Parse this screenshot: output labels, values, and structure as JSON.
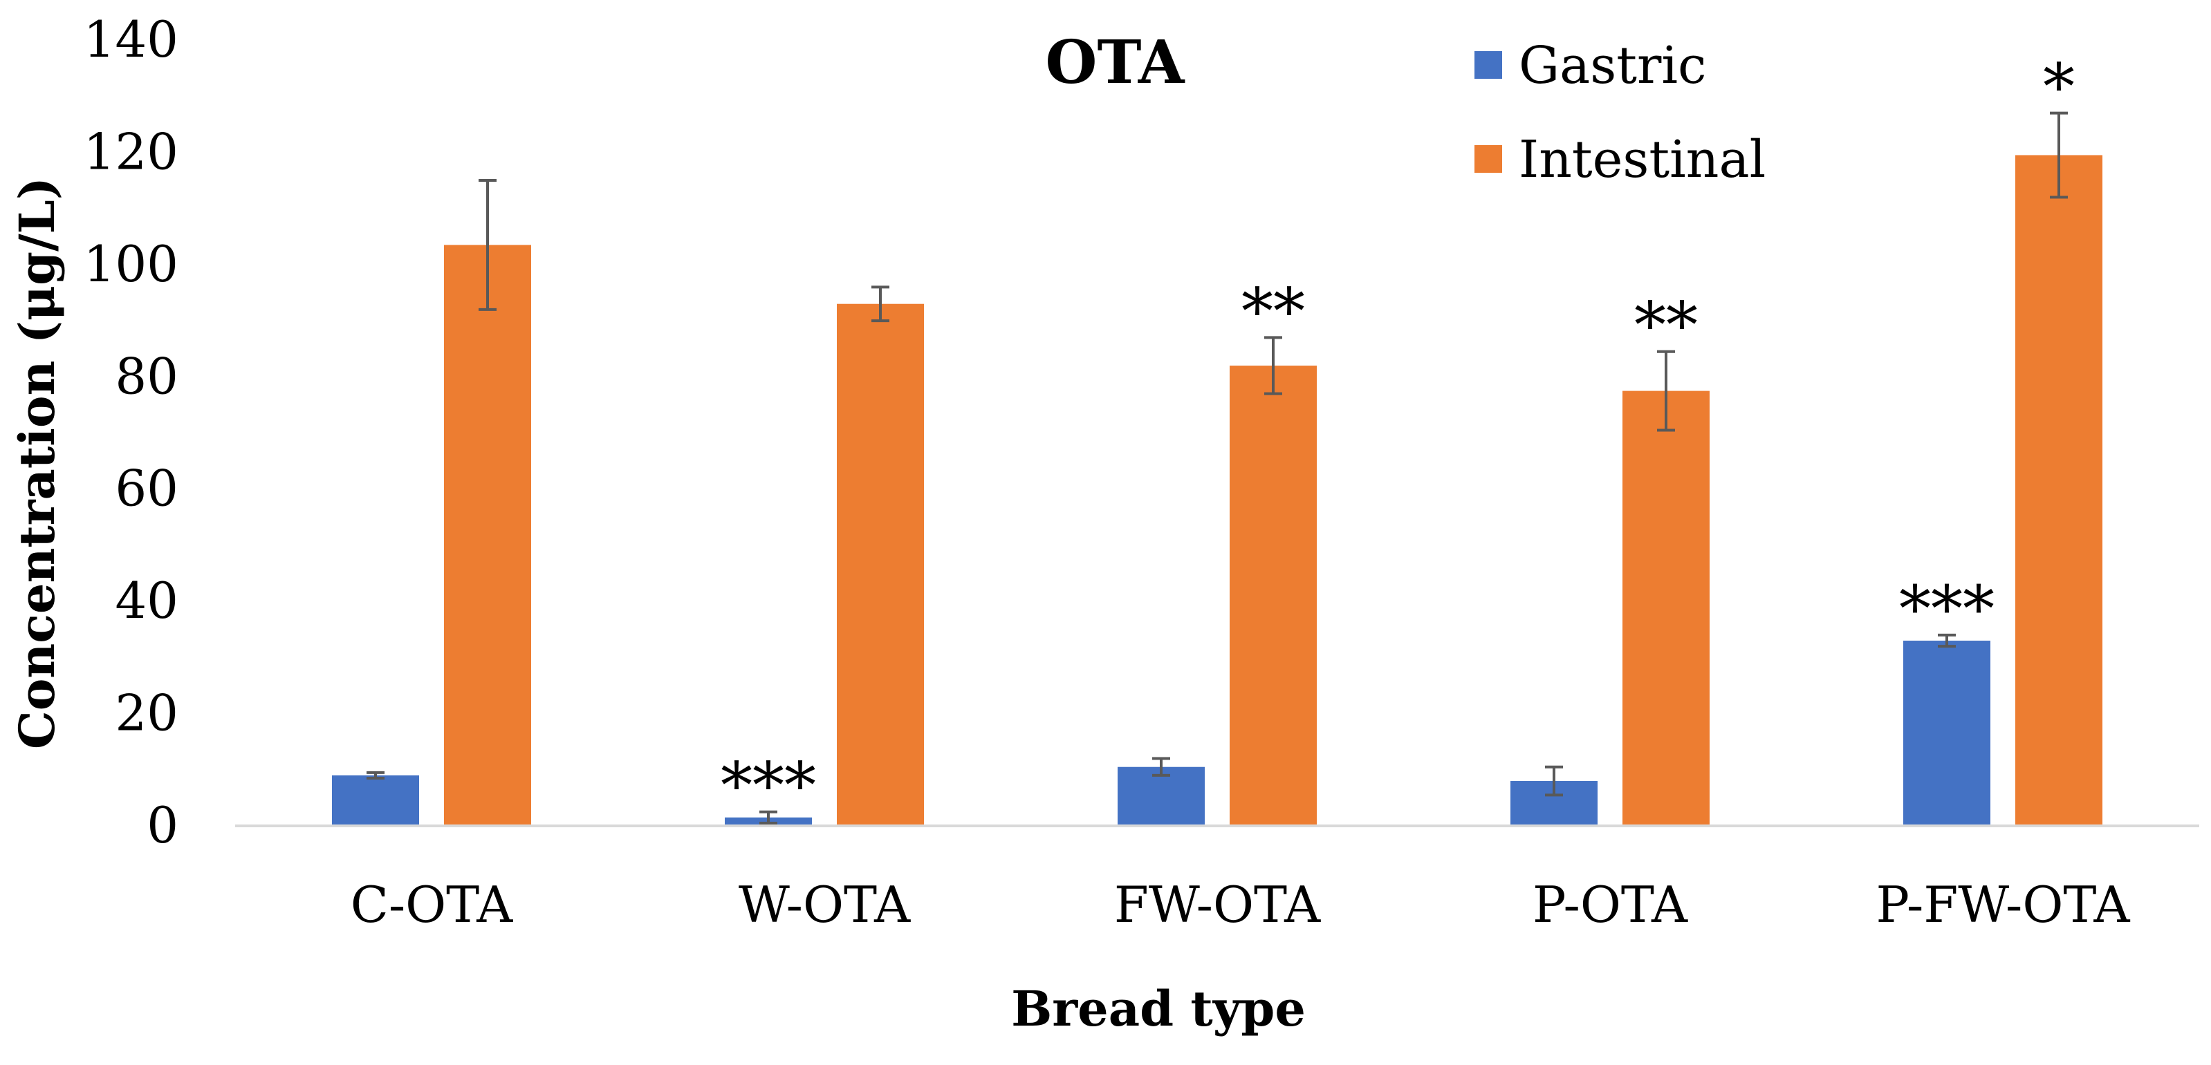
{
  "chart_data": {
    "type": "bar",
    "title": "OTA",
    "xlabel": "Bread type",
    "ylabel": "Concentration (μg/L)",
    "ylim": [
      0,
      140
    ],
    "yticks": [
      0,
      20,
      40,
      60,
      80,
      100,
      120,
      140
    ],
    "categories": [
      "C-OTA",
      "W-OTA",
      "FW-OTA",
      "P-OTA",
      "P-FW-OTA"
    ],
    "legend_position": "top-right",
    "series": [
      {
        "name": "Gastric",
        "color": "#4472C4",
        "values": [
          9,
          1.5,
          10.5,
          8,
          33
        ],
        "errors": [
          0.5,
          1,
          1.5,
          2.5,
          1
        ],
        "significance": [
          "",
          "***",
          "",
          "",
          "***"
        ]
      },
      {
        "name": "Intestinal",
        "color": "#ED7D31",
        "values": [
          103.5,
          93,
          82,
          77.5,
          119.5
        ],
        "errors": [
          11.5,
          3,
          5,
          7,
          7.5
        ],
        "significance": [
          "",
          "",
          "**",
          "**",
          "*"
        ]
      }
    ]
  }
}
